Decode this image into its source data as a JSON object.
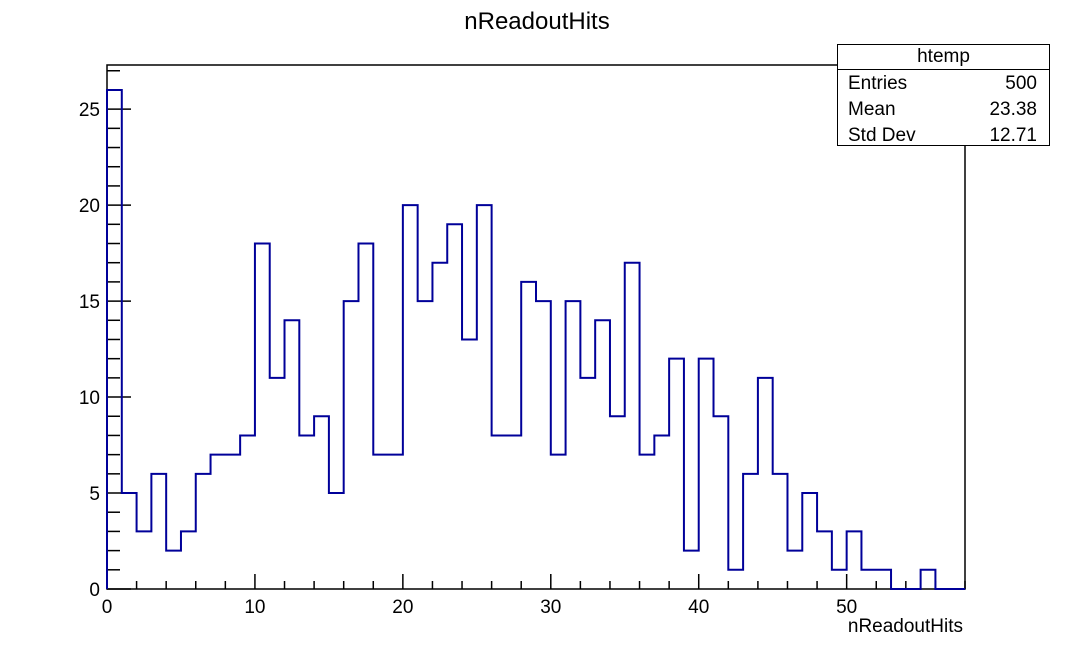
{
  "chart_data": {
    "type": "bar",
    "title": "nReadoutHits",
    "xlabel": "nReadoutHits",
    "ylabel": "",
    "xlim": [
      0,
      58
    ],
    "ylim": [
      0,
      27.3
    ],
    "bin_width": 1,
    "x_ticks": [
      0,
      10,
      20,
      30,
      40,
      50
    ],
    "y_ticks": [
      0,
      5,
      10,
      15,
      20,
      25
    ],
    "line_color": "#000099",
    "values": [
      26,
      5,
      3,
      6,
      2,
      3,
      6,
      7,
      7,
      8,
      18,
      11,
      14,
      8,
      9,
      5,
      15,
      18,
      7,
      7,
      20,
      15,
      17,
      19,
      13,
      20,
      8,
      8,
      16,
      15,
      7,
      15,
      11,
      14,
      9,
      17,
      7,
      8,
      12,
      2,
      12,
      9,
      1,
      6,
      11,
      6,
      2,
      5,
      3,
      1,
      3,
      1,
      1,
      0,
      0,
      1,
      0,
      0
    ]
  },
  "stats_box": {
    "name": "htemp",
    "rows": [
      {
        "label": "Entries",
        "value": "500"
      },
      {
        "label": "Mean",
        "value": "23.38"
      },
      {
        "label": "Std Dev",
        "value": "12.71"
      }
    ]
  }
}
